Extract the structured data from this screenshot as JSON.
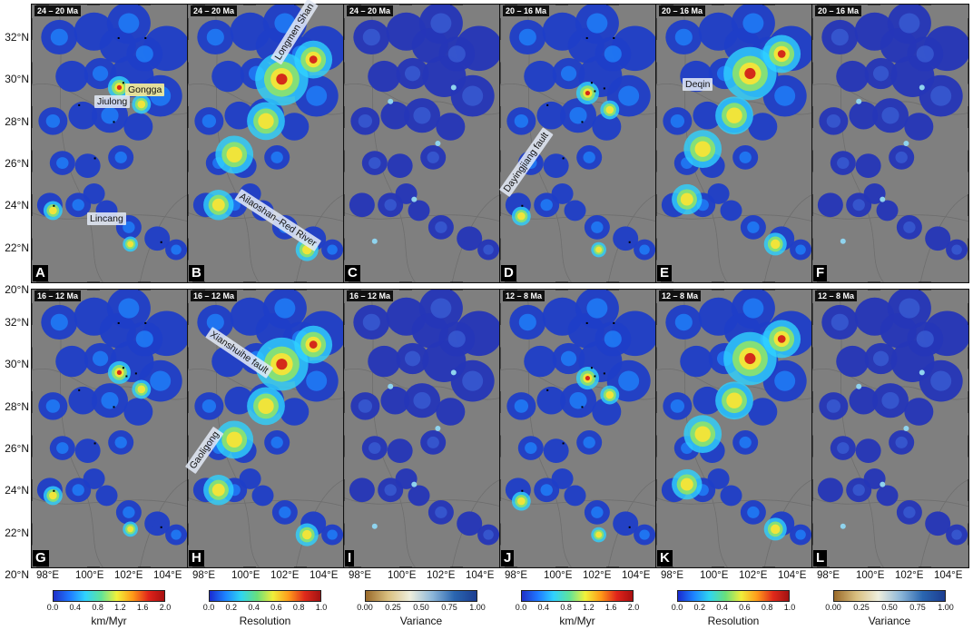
{
  "figure": {
    "lat_labels": [
      "32°N",
      "30°N",
      "28°N",
      "26°N",
      "24°N",
      "22°N",
      "20°N"
    ],
    "lon_labels": [
      "98°E",
      "100°E",
      "102°E",
      "104°E"
    ],
    "rows": [
      {
        "lat_labels": [
          "32°N",
          "30°N",
          "28°N",
          "26°N",
          "24°N",
          "22°N",
          "20°N"
        ],
        "panels": [
          {
            "letter": "A",
            "period": "24 – 20 Ma",
            "kind": "rate",
            "labels": [
              {
                "text": "Gongga",
                "hl": true
              },
              {
                "text": "Jiulong",
                "hl": false
              },
              {
                "text": "Lincang",
                "hl": false
              }
            ]
          },
          {
            "letter": "B",
            "period": "24 – 20 Ma",
            "kind": "res",
            "labels": [
              {
                "text": "Longmen Shan",
                "hl": false
              },
              {
                "text": "Ailaoshan–Red River",
                "hl": false
              }
            ]
          },
          {
            "letter": "C",
            "period": "24 – 20 Ma",
            "kind": "var",
            "labels": []
          },
          {
            "letter": "D",
            "period": "20 – 16 Ma",
            "kind": "rate",
            "labels": [
              {
                "text": "Dayingjiang fault",
                "hl": false
              }
            ]
          },
          {
            "letter": "E",
            "period": "20 – 16 Ma",
            "kind": "res",
            "labels": [
              {
                "text": "Deqin",
                "hl": false
              }
            ]
          },
          {
            "letter": "F",
            "period": "20 – 16 Ma",
            "kind": "var",
            "labels": []
          }
        ]
      },
      {
        "lat_labels": [
          "32°N",
          "30°N",
          "28°N",
          "26°N",
          "24°N",
          "22°N",
          "20°N"
        ],
        "panels": [
          {
            "letter": "G",
            "period": "16 – 12 Ma",
            "kind": "rate",
            "labels": []
          },
          {
            "letter": "H",
            "period": "16 – 12 Ma",
            "kind": "res",
            "labels": [
              {
                "text": "Xianshuihe fault",
                "hl": false
              },
              {
                "text": "Gaoligong",
                "hl": false
              }
            ]
          },
          {
            "letter": "I",
            "period": "16 – 12 Ma",
            "kind": "var",
            "labels": []
          },
          {
            "letter": "J",
            "period": "12 – 8 Ma",
            "kind": "rate",
            "labels": []
          },
          {
            "letter": "K",
            "period": "12 – 8 Ma",
            "kind": "res",
            "labels": []
          },
          {
            "letter": "L",
            "period": "12 – 8 Ma",
            "kind": "var",
            "labels": []
          }
        ]
      }
    ],
    "colorbars": [
      {
        "title": "km/Myr",
        "ticks": [
          "0.0",
          "0.4",
          "0.8",
          "1.2",
          "1.6",
          "2.0"
        ],
        "kind": "rate"
      },
      {
        "title": "Resolution",
        "ticks": [
          "0.0",
          "0.2",
          "0.4",
          "0.6",
          "0.8",
          "1.0"
        ],
        "kind": "res"
      },
      {
        "title": "Variance",
        "ticks": [
          "0.00",
          "0.25",
          "0.50",
          "0.75",
          "1.00"
        ],
        "kind": "var"
      },
      {
        "title": "km/Myr",
        "ticks": [
          "0.0",
          "0.4",
          "0.8",
          "1.2",
          "1.6",
          "2.0"
        ],
        "kind": "rate"
      },
      {
        "title": "Resolution",
        "ticks": [
          "0.0",
          "0.2",
          "0.4",
          "0.6",
          "0.8",
          "1.0"
        ],
        "kind": "res"
      },
      {
        "title": "Variance",
        "ticks": [
          "0.00",
          "0.25",
          "0.50",
          "0.75",
          "1.00"
        ],
        "kind": "var"
      }
    ],
    "colors": {
      "background_gray": "#7f7f7f",
      "low_blue": "#1f3ec8",
      "peak_red": "#d42a1a"
    }
  }
}
